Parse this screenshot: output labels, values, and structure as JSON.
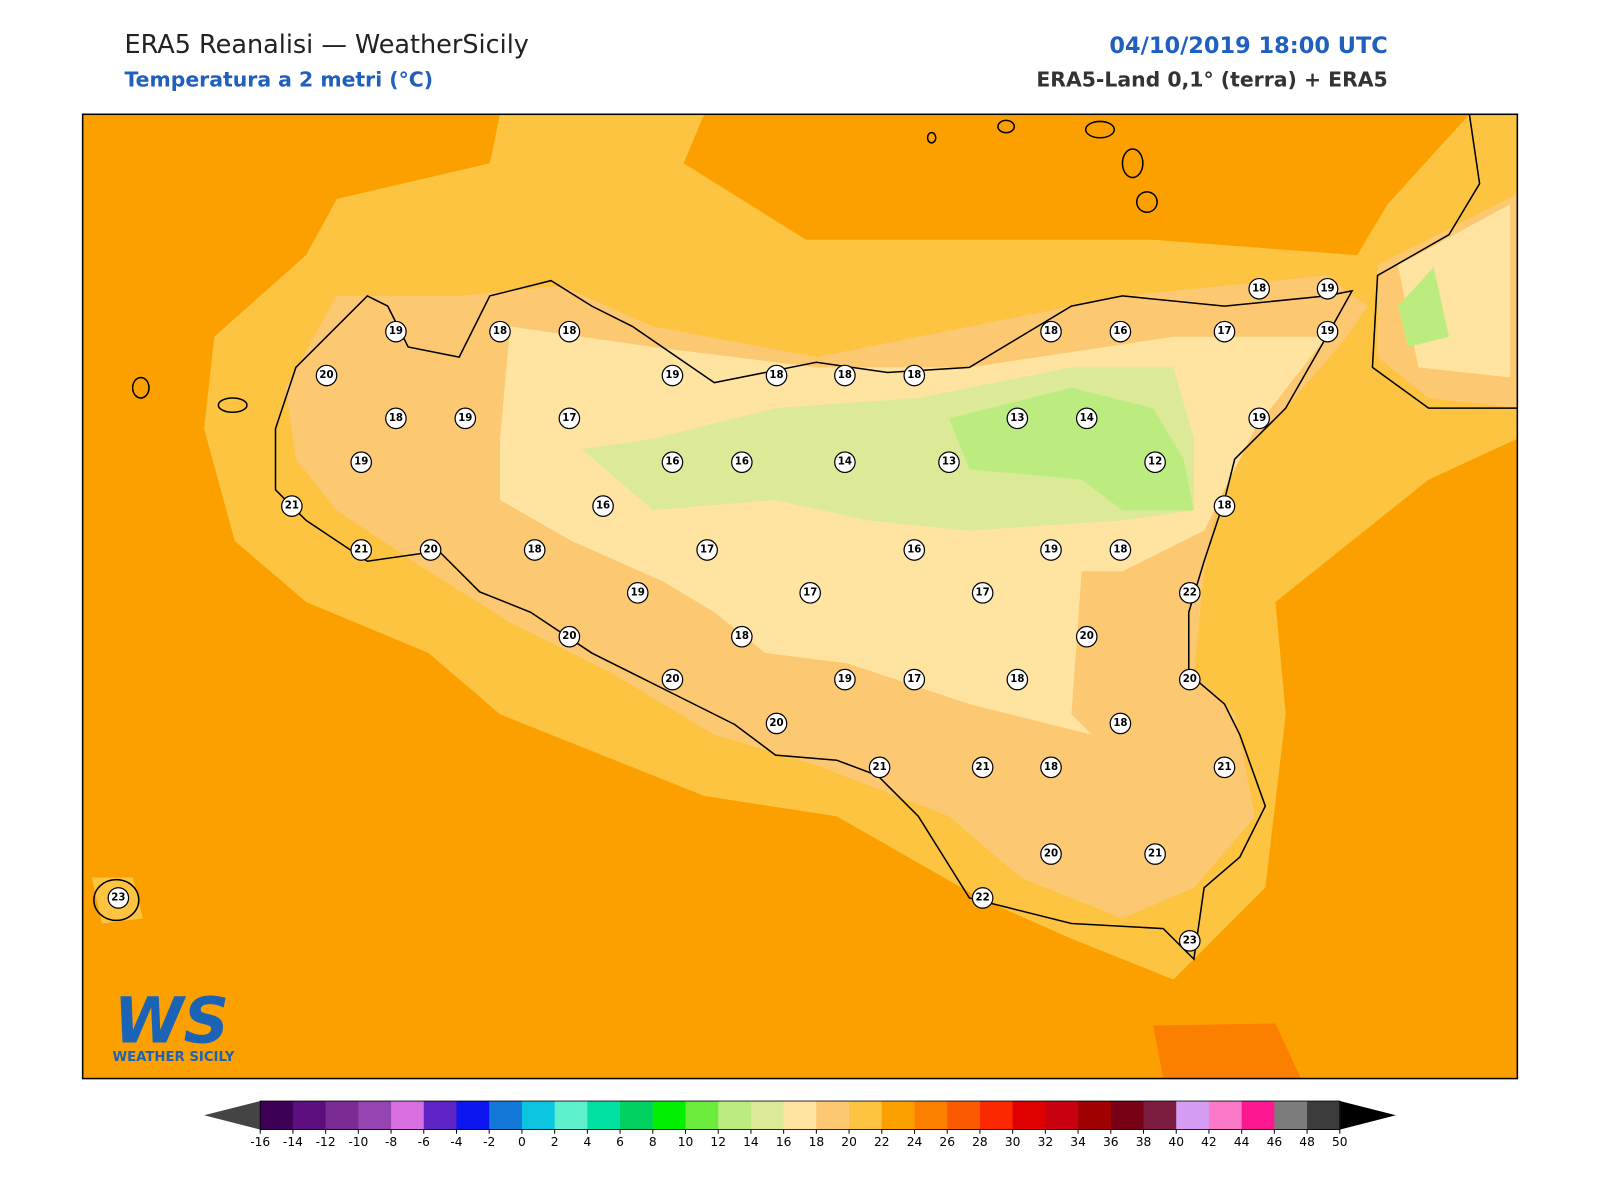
{
  "header": {
    "title": "ERA5 Reanalisi — WeatherSicily",
    "subtitle": "Temperatura a 2 metri (°C)",
    "datetime": "04/10/2019 18:00 UTC",
    "source": "ERA5-Land 0,1° (terra) + ERA5"
  },
  "map": {
    "stations": [
      19,
      18,
      18,
      20,
      18,
      19,
      17,
      19,
      19,
      18,
      18,
      18,
      18,
      16,
      17,
      18,
      19,
      19,
      13,
      14,
      19,
      16,
      16,
      14,
      13,
      12,
      16,
      21,
      18,
      21,
      20,
      18,
      17,
      16,
      19,
      18,
      19,
      17,
      17,
      22,
      20,
      18,
      20,
      20,
      19,
      17,
      18,
      20,
      20,
      18,
      21,
      21,
      18,
      21,
      20,
      21,
      22,
      23,
      23
    ]
  },
  "colorbar": {
    "ticks": [
      -16,
      -14,
      -12,
      -10,
      -8,
      -6,
      -4,
      -2,
      0,
      2,
      4,
      6,
      8,
      10,
      12,
      14,
      16,
      18,
      20,
      22,
      24,
      26,
      28,
      30,
      32,
      34,
      36,
      38,
      40,
      42,
      44,
      46,
      48,
      50
    ],
    "colors": [
      "#3d0056",
      "#5c0d7e",
      "#7a2b94",
      "#9444b0",
      "#d86ee0",
      "#5d23c4",
      "#0b16f0",
      "#1478d8",
      "#0ac4e0",
      "#5cf0cc",
      "#00e0a0",
      "#00d060",
      "#00f000",
      "#6cec3c",
      "#bcec80",
      "#dcea98",
      "#fee4a0",
      "#fcc872",
      "#fcc440",
      "#fca000",
      "#fc8000",
      "#fc5a00",
      "#fc2800",
      "#e00000",
      "#c80010",
      "#a00000",
      "#780014",
      "#7c1c40",
      "#d59cf4",
      "#fc78c8",
      "#fc1890",
      "#7c7c7c",
      "#3c3c3c"
    ]
  },
  "logo": {
    "mark": "WS",
    "text": "WEATHER SICILY"
  }
}
